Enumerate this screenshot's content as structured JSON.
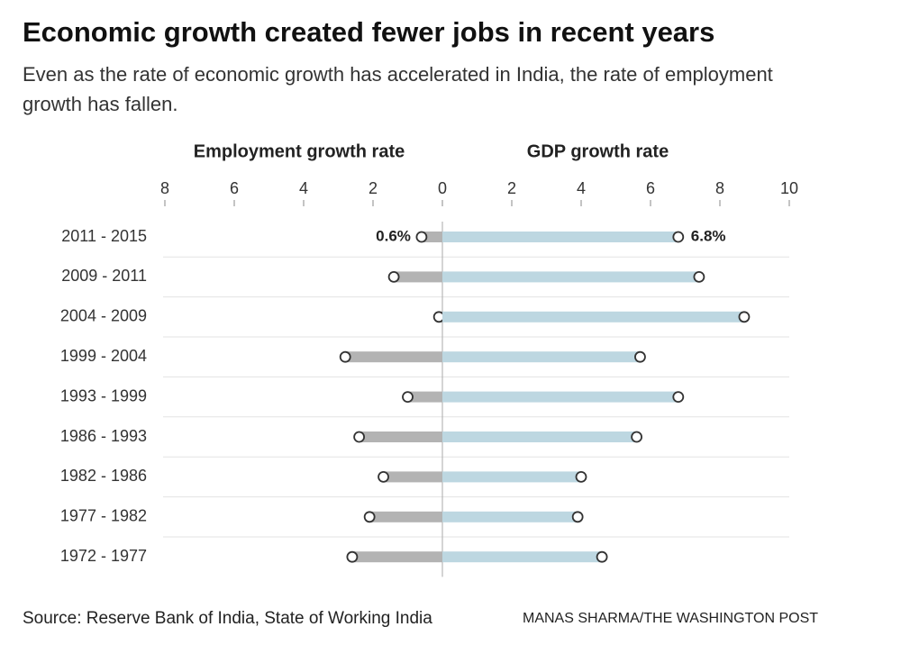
{
  "chart_data": {
    "type": "diverging-dumbbell",
    "title": "Economic growth created fewer jobs in recent years",
    "subtitle": "Even as the rate of economic growth has accelerated in India, the rate of employment growth has fallen.",
    "source": "Source: Reserve Bank of India, State of Working India",
    "credit": "MANAS SHARMA/THE WASHINGTON POST",
    "categories": [
      "2011 - 2015",
      "2009 - 2011",
      "2004 - 2009",
      "1999 - 2004",
      "1993 - 1999",
      "1986 - 1993",
      "1982 - 1986",
      "1977 - 1982",
      "1972 - 1977"
    ],
    "series": [
      {
        "name": "Employment growth rate",
        "color": "#b3b3b3",
        "direction": "left",
        "xlim": [
          0,
          8
        ],
        "xticks": [
          8,
          6,
          4,
          2
        ],
        "values": [
          0.6,
          1.4,
          0.1,
          2.8,
          1.0,
          2.4,
          1.7,
          2.1,
          2.6
        ],
        "value_labels": [
          "0.6%",
          null,
          null,
          null,
          null,
          null,
          null,
          null,
          null
        ]
      },
      {
        "name": "GDP growth rate",
        "color": "#bdd7e1",
        "direction": "right",
        "xlim": [
          0,
          10
        ],
        "xticks": [
          0,
          2,
          4,
          6,
          8,
          10
        ],
        "values": [
          6.8,
          7.4,
          8.7,
          5.7,
          6.8,
          5.6,
          4.0,
          3.9,
          4.6
        ],
        "value_labels": [
          "6.8%",
          null,
          null,
          null,
          null,
          null,
          null,
          null,
          null
        ]
      }
    ]
  }
}
